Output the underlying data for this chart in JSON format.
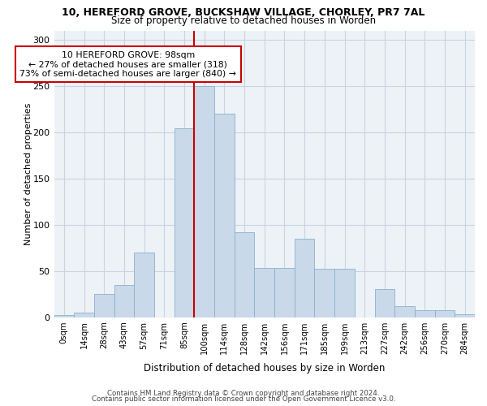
{
  "title": "10, HEREFORD GROVE, BUCKSHAW VILLAGE, CHORLEY, PR7 7AL",
  "subtitle": "Size of property relative to detached houses in Worden",
  "xlabel": "Distribution of detached houses by size in Worden",
  "ylabel": "Number of detached properties",
  "bar_color": "#c9d9ea",
  "bar_edge_color": "#8ab0cc",
  "grid_color": "#c8d4e0",
  "background_color": "#edf2f7",
  "bin_labels": [
    "0sqm",
    "14sqm",
    "28sqm",
    "43sqm",
    "57sqm",
    "71sqm",
    "85sqm",
    "100sqm",
    "114sqm",
    "128sqm",
    "142sqm",
    "156sqm",
    "171sqm",
    "185sqm",
    "199sqm",
    "213sqm",
    "227sqm",
    "242sqm",
    "256sqm",
    "270sqm",
    "284sqm"
  ],
  "bar_values": [
    2,
    5,
    25,
    35,
    70,
    0,
    204,
    250,
    220,
    92,
    53,
    53,
    85,
    52,
    52,
    0,
    30,
    12,
    8,
    8,
    3
  ],
  "ylim": [
    0,
    310
  ],
  "yticks": [
    0,
    50,
    100,
    150,
    200,
    250,
    300
  ],
  "property_bin_index": 7,
  "vline_color": "#cc0000",
  "annotation_box_color": "#ffffff",
  "annotation_box_edge": "#cc0000",
  "annotation_text_line1": "10 HEREFORD GROVE: 98sqm",
  "annotation_text_line2": "← 27% of detached houses are smaller (318)",
  "annotation_text_line3": "73% of semi-detached houses are larger (840) →",
  "footer_line1": "Contains HM Land Registry data © Crown copyright and database right 2024.",
  "footer_line2": "Contains public sector information licensed under the Open Government Licence v3.0."
}
